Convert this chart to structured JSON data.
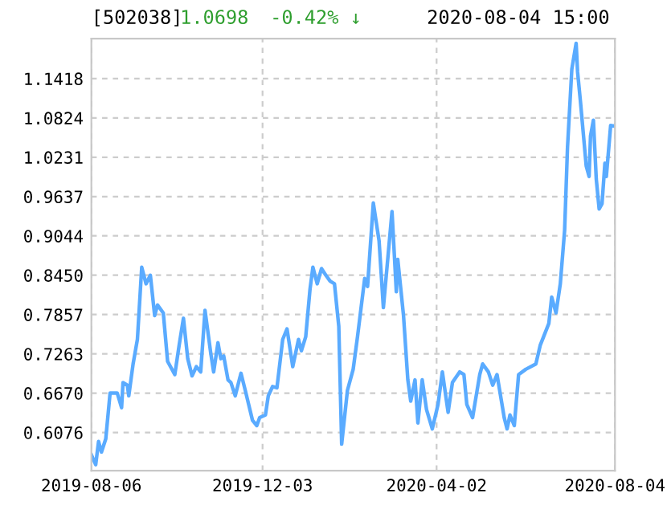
{
  "chart_data": {
    "type": "line",
    "title": "[502038]",
    "annotations": [
      "1.0698",
      "-0.42% ↓",
      "2020-08-04 15:00"
    ],
    "x": [
      "2019-08-06",
      "2019-08-09",
      "2019-08-11",
      "2019-08-13",
      "2019-08-16",
      "2019-08-19",
      "2019-08-24",
      "2019-08-27",
      "2019-08-28",
      "2019-08-31",
      "2019-09-01",
      "2019-09-04",
      "2019-09-07",
      "2019-09-10",
      "2019-09-13",
      "2019-09-16",
      "2019-09-19",
      "2019-09-21",
      "2019-09-25",
      "2019-09-28",
      "2019-10-03",
      "2019-10-06",
      "2019-10-09",
      "2019-10-12",
      "2019-10-15",
      "2019-10-18",
      "2019-10-21",
      "2019-10-24",
      "2019-10-28",
      "2019-10-30",
      "2019-11-02",
      "2019-11-04",
      "2019-11-06",
      "2019-11-09",
      "2019-11-11",
      "2019-11-14",
      "2019-11-18",
      "2019-11-21",
      "2019-11-26",
      "2019-11-29",
      "2019-12-01",
      "2019-12-05",
      "2019-12-07",
      "2019-12-10",
      "2019-12-13",
      "2019-12-17",
      "2019-12-20",
      "2019-12-24",
      "2019-12-28",
      "2019-12-30",
      "2020-01-02",
      "2020-01-05",
      "2020-01-07",
      "2020-01-10",
      "2020-01-13",
      "2020-01-16",
      "2020-01-19",
      "2020-01-22",
      "2020-01-25",
      "2020-01-27",
      "2020-01-31",
      "2020-02-04",
      "2020-02-07",
      "2020-02-12",
      "2020-02-14",
      "2020-02-18",
      "2020-02-22",
      "2020-02-25",
      "2020-03-02",
      "2020-03-05",
      "2020-03-06",
      "2020-03-10",
      "2020-03-13",
      "2020-03-15",
      "2020-03-18",
      "2020-03-20",
      "2020-03-23",
      "2020-03-26",
      "2020-03-30",
      "2020-04-03",
      "2020-04-06",
      "2020-04-10",
      "2020-04-13",
      "2020-04-18",
      "2020-04-21",
      "2020-04-23",
      "2020-04-27",
      "2020-05-02",
      "2020-05-04",
      "2020-05-08",
      "2020-05-11",
      "2020-05-14",
      "2020-05-19",
      "2020-05-21",
      "2020-05-23",
      "2020-05-26",
      "2020-05-29",
      "2020-06-03",
      "2020-06-10",
      "2020-06-13",
      "2020-06-19",
      "2020-06-21",
      "2020-06-24",
      "2020-06-27",
      "2020-06-30",
      "2020-07-02",
      "2020-07-05",
      "2020-07-08",
      "2020-07-09",
      "2020-07-11",
      "2020-07-15",
      "2020-07-17",
      "2020-07-18",
      "2020-07-20",
      "2020-07-22",
      "2020-07-24",
      "2020-07-26",
      "2020-07-28",
      "2020-07-29",
      "2020-08-01",
      "2020-08-04"
    ],
    "series": [
      {
        "color": "#5aabff",
        "values": [
          0.574,
          0.559,
          0.594,
          0.578,
          0.598,
          0.667,
          0.667,
          0.645,
          0.683,
          0.679,
          0.663,
          0.711,
          0.748,
          0.857,
          0.832,
          0.845,
          0.784,
          0.8,
          0.788,
          0.715,
          0.695,
          0.739,
          0.78,
          0.719,
          0.693,
          0.707,
          0.699,
          0.792,
          0.727,
          0.699,
          0.743,
          0.719,
          0.723,
          0.687,
          0.683,
          0.663,
          0.697,
          0.671,
          0.626,
          0.618,
          0.63,
          0.634,
          0.663,
          0.677,
          0.675,
          0.748,
          0.764,
          0.707,
          0.748,
          0.731,
          0.752,
          0.824,
          0.857,
          0.832,
          0.855,
          0.845,
          0.836,
          0.832,
          0.768,
          0.59,
          0.671,
          0.703,
          0.752,
          0.84,
          0.828,
          0.954,
          0.897,
          0.796,
          0.941,
          0.82,
          0.869,
          0.784,
          0.687,
          0.655,
          0.687,
          0.622,
          0.687,
          0.642,
          0.613,
          0.65,
          0.699,
          0.638,
          0.683,
          0.699,
          0.695,
          0.65,
          0.63,
          0.695,
          0.711,
          0.699,
          0.679,
          0.695,
          0.63,
          0.613,
          0.634,
          0.618,
          0.695,
          0.703,
          0.711,
          0.739,
          0.772,
          0.812,
          0.788,
          0.832,
          0.913,
          1.038,
          1.156,
          1.195,
          1.152,
          1.107,
          1.01,
          0.994,
          1.055,
          1.079,
          0.99,
          0.945,
          0.953,
          1.014,
          0.994,
          1.071,
          1.07
        ]
      }
    ],
    "xlim": [
      "2019-08-06",
      "2020-08-04"
    ],
    "xticks": [
      "2019-08-06",
      "2019-12-03",
      "2020-04-02",
      "2020-08-04"
    ],
    "ylim": [
      0.55,
      1.202
    ],
    "yticks": [
      0.6076,
      {
        "value": 0.667,
        "label": "0.6670"
      },
      0.7263,
      0.7857,
      {
        "value": 0.845,
        "label": "0.8450"
      },
      0.9044,
      0.9637,
      1.0231,
      1.0824,
      1.1418
    ],
    "grid": true,
    "line_style": "solid"
  }
}
